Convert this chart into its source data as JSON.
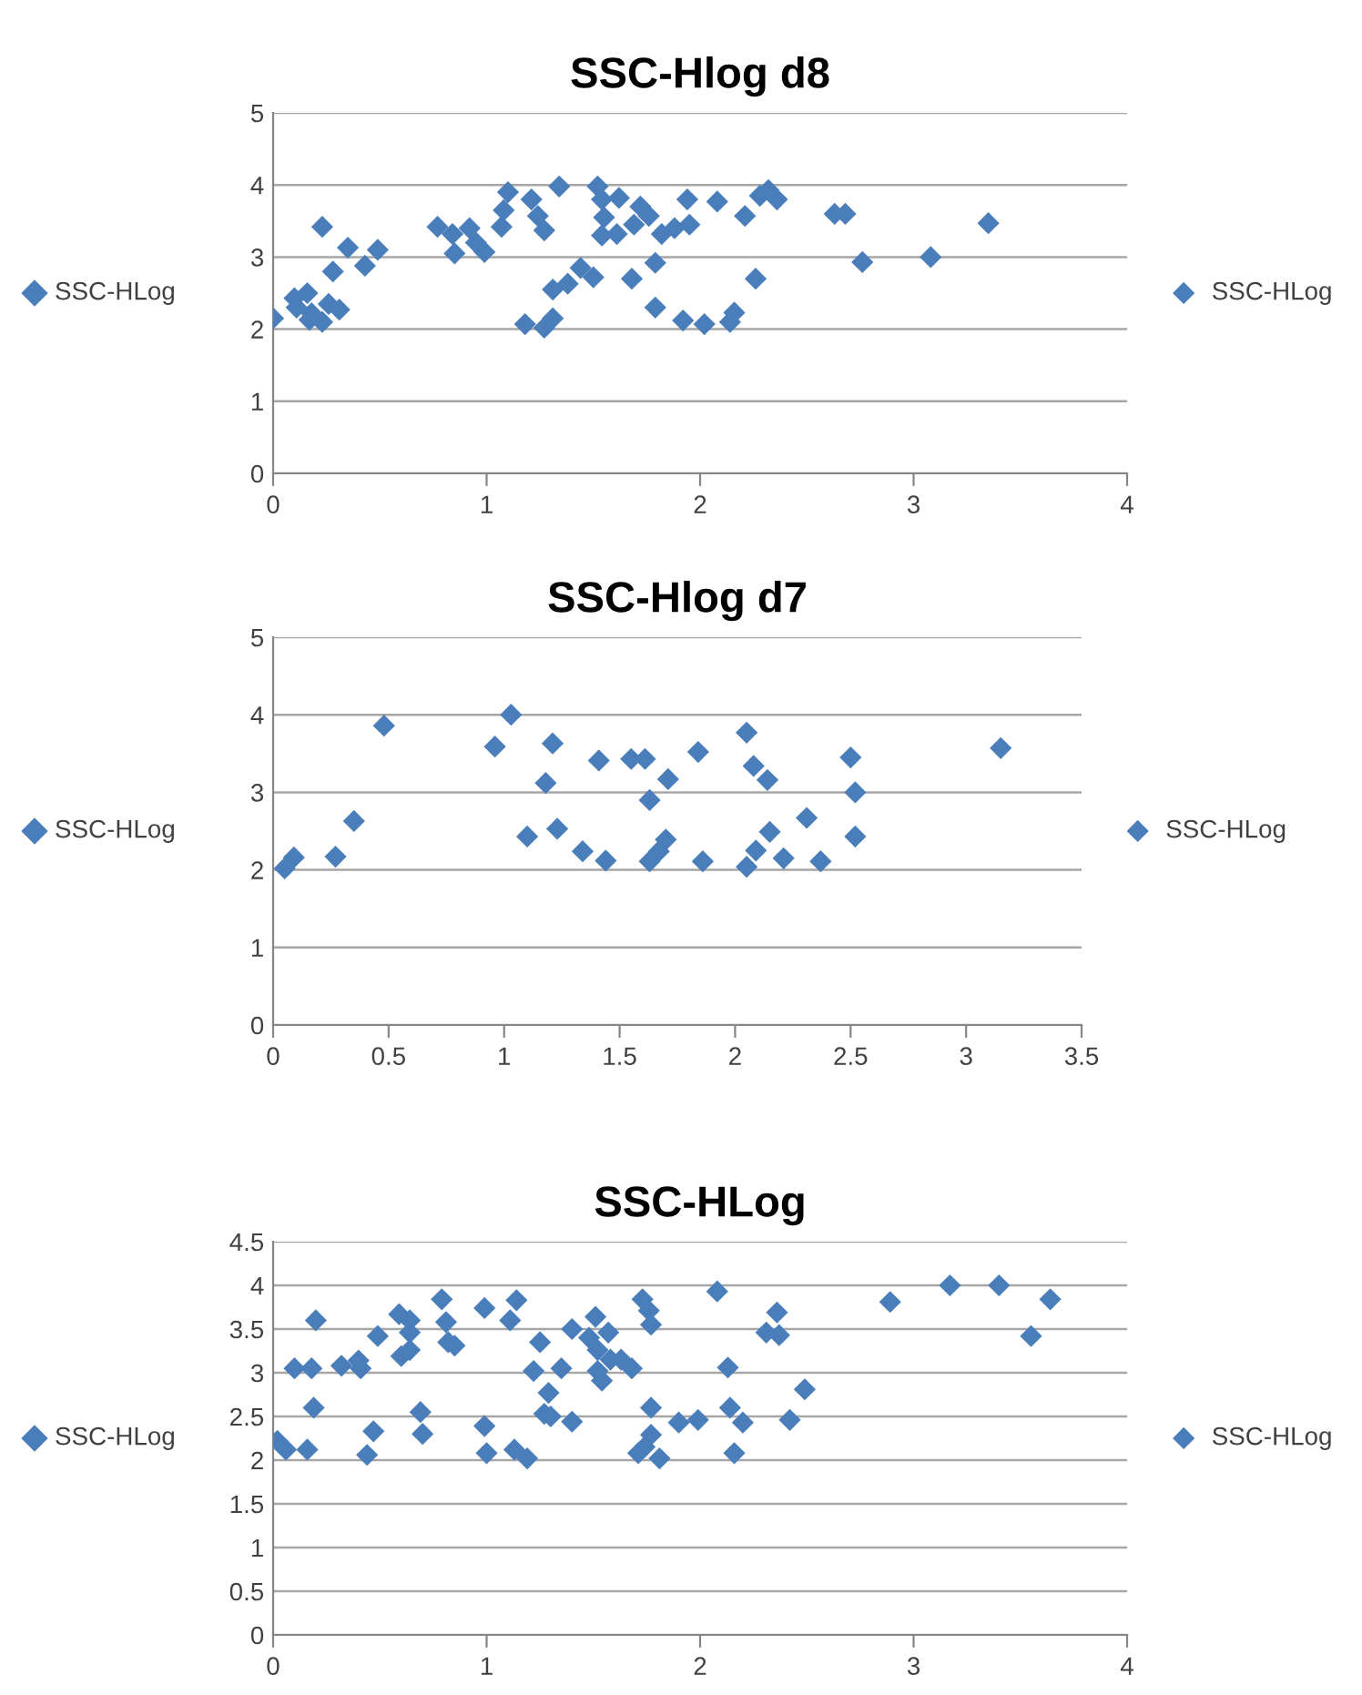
{
  "chart_data": [
    {
      "type": "scatter",
      "title": "SSC-Hlog d8",
      "ylabel": "SSC-HLog",
      "marker": "diamond",
      "grid": "y",
      "legend": "right",
      "xlim": [
        0,
        4
      ],
      "xticks": [
        0,
        1,
        2,
        3,
        4
      ],
      "ylim": [
        0,
        5
      ],
      "yticks": [
        0,
        1,
        2,
        3,
        4,
        5
      ],
      "series": [
        {
          "name": "SSC-HLog",
          "color": "#4a7ebb",
          "x": [
            0.0,
            0.1,
            0.16,
            0.11,
            0.18,
            0.17,
            0.23,
            0.23,
            0.26,
            0.28,
            0.31,
            0.35,
            0.43,
            0.49,
            0.77,
            0.84,
            0.85,
            0.92,
            0.95,
            0.99,
            1.07,
            1.08,
            1.1,
            1.18,
            1.21,
            1.24,
            1.27,
            1.27,
            1.31,
            1.31,
            1.34,
            1.38,
            1.44,
            1.5,
            1.52,
            1.54,
            1.54,
            1.55,
            1.61,
            1.62,
            1.68,
            1.69,
            1.72,
            1.76,
            1.79,
            1.79,
            1.82,
            1.88,
            1.92,
            1.94,
            1.95,
            2.02,
            2.08,
            2.14,
            2.16,
            2.21,
            2.26,
            2.28,
            2.32,
            2.36,
            2.63,
            2.68,
            2.76,
            3.08,
            3.35
          ],
          "values": [
            2.15,
            2.43,
            2.5,
            2.3,
            2.22,
            2.13,
            2.1,
            3.42,
            2.35,
            2.8,
            2.27,
            3.13,
            2.88,
            3.1,
            3.42,
            3.32,
            3.05,
            3.4,
            3.2,
            3.07,
            3.42,
            3.65,
            3.9,
            2.07,
            3.8,
            3.57,
            3.37,
            2.02,
            2.15,
            2.55,
            3.98,
            2.63,
            2.85,
            2.72,
            3.98,
            3.8,
            3.3,
            3.55,
            3.32,
            3.82,
            2.7,
            3.45,
            3.7,
            3.57,
            2.92,
            2.3,
            3.32,
            3.4,
            2.12,
            3.8,
            3.45,
            2.07,
            3.77,
            2.1,
            2.23,
            3.57,
            2.7,
            3.85,
            3.93,
            3.8,
            3.6,
            3.6,
            2.93,
            3.0,
            3.47
          ]
        }
      ]
    },
    {
      "type": "scatter",
      "title": "SSC-Hlog d7",
      "ylabel": "SSC-HLog",
      "marker": "diamond",
      "grid": "y",
      "legend": "right",
      "xlim": [
        0,
        3.5
      ],
      "xticks": [
        0,
        0.5,
        1,
        1.5,
        2,
        2.5,
        3,
        3.5
      ],
      "ylim": [
        0,
        5
      ],
      "yticks": [
        0,
        1,
        2,
        3,
        4,
        5
      ],
      "series": [
        {
          "name": "SSC-HLog",
          "color": "#4a7ebb",
          "x": [
            0.05,
            0.09,
            0.27,
            0.35,
            0.48,
            0.96,
            1.03,
            1.1,
            1.18,
            1.21,
            1.23,
            1.34,
            1.41,
            1.44,
            1.55,
            1.61,
            1.63,
            1.63,
            1.67,
            1.7,
            1.71,
            1.84,
            1.86,
            2.05,
            2.05,
            2.08,
            2.09,
            2.14,
            2.15,
            2.21,
            2.31,
            2.37,
            2.5,
            2.52,
            2.52,
            3.15
          ],
          "values": [
            2.02,
            2.16,
            2.17,
            2.63,
            3.86,
            3.59,
            4.0,
            2.43,
            3.12,
            3.63,
            2.53,
            2.24,
            3.41,
            2.12,
            3.43,
            3.43,
            2.9,
            2.11,
            2.24,
            2.39,
            3.17,
            3.52,
            2.11,
            3.77,
            2.04,
            3.34,
            2.25,
            3.16,
            2.49,
            2.15,
            2.67,
            2.11,
            3.45,
            3.0,
            2.43,
            3.57
          ]
        }
      ]
    },
    {
      "type": "scatter",
      "title": "SSC-HLog",
      "ylabel": "SSC-HLog",
      "marker": "diamond",
      "grid": "y",
      "legend": "right",
      "xlim": [
        0,
        4
      ],
      "xticks": [
        0,
        1,
        2,
        3,
        4
      ],
      "ylim": [
        0,
        4.5
      ],
      "yticks": [
        0,
        0.5,
        1,
        1.5,
        2,
        2.5,
        3,
        3.5,
        4,
        4.5
      ],
      "series": [
        {
          "name": "SSC-HLog",
          "color": "#4a7ebb",
          "x": [
            0.02,
            0.06,
            0.1,
            0.16,
            0.18,
            0.2,
            0.19,
            0.32,
            0.4,
            0.41,
            0.44,
            0.47,
            0.49,
            0.59,
            0.6,
            0.64,
            0.64,
            0.64,
            0.69,
            0.7,
            0.79,
            0.81,
            0.82,
            0.85,
            0.99,
            0.99,
            1.0,
            1.11,
            1.14,
            1.13,
            1.19,
            1.25,
            1.22,
            1.29,
            1.27,
            1.3,
            1.35,
            1.4,
            1.4,
            1.48,
            1.51,
            1.52,
            1.54,
            1.52,
            1.57,
            1.58,
            1.63,
            1.68,
            1.71,
            1.73,
            1.76,
            1.77,
            1.77,
            1.77,
            1.74,
            1.81,
            1.9,
            1.99,
            2.08,
            2.13,
            2.14,
            2.16,
            2.2,
            2.31,
            2.36,
            2.37,
            2.42,
            2.49,
            2.89,
            3.17,
            3.4,
            3.55,
            3.64
          ],
          "values": [
            2.22,
            2.12,
            3.05,
            2.12,
            3.05,
            3.6,
            2.6,
            3.08,
            3.14,
            3.05,
            2.06,
            2.33,
            3.42,
            3.67,
            3.19,
            3.26,
            3.6,
            3.46,
            2.55,
            2.3,
            3.84,
            3.58,
            3.35,
            3.31,
            3.74,
            2.39,
            2.08,
            3.6,
            3.83,
            2.12,
            2.02,
            3.35,
            3.02,
            2.77,
            2.53,
            2.5,
            3.05,
            3.5,
            2.44,
            3.4,
            3.64,
            3.02,
            2.91,
            3.26,
            3.46,
            3.15,
            3.15,
            3.05,
            2.08,
            3.84,
            3.71,
            3.55,
            2.6,
            2.29,
            2.15,
            2.02,
            2.43,
            2.46,
            3.93,
            3.06,
            2.6,
            2.08,
            2.43,
            3.46,
            3.69,
            3.43,
            2.46,
            2.81,
            3.81,
            4.0,
            4.0,
            3.42,
            3.84
          ]
        }
      ]
    }
  ]
}
